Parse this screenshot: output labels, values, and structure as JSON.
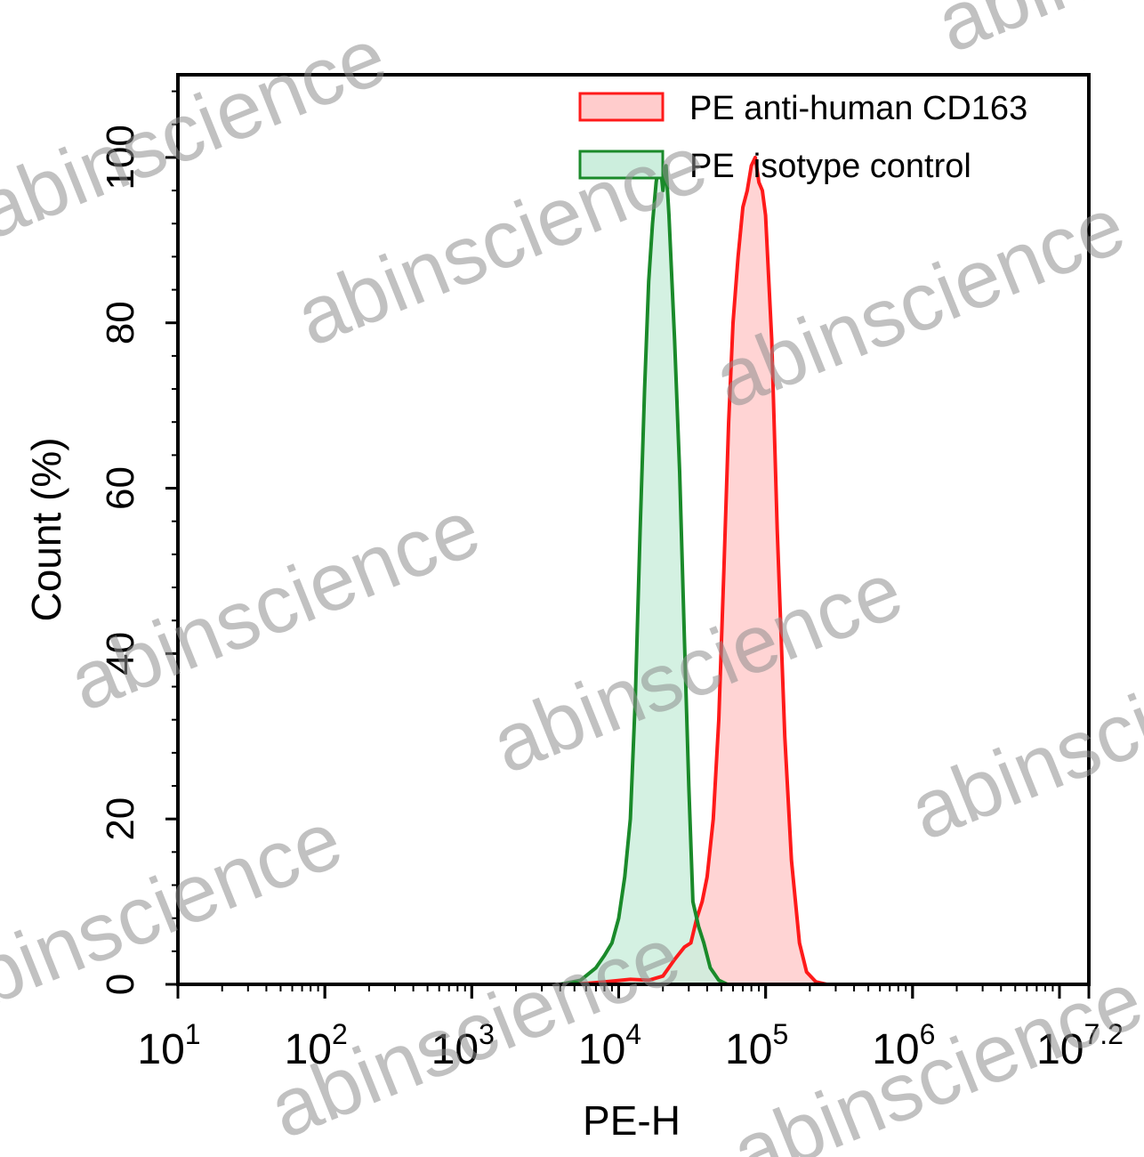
{
  "chart_data": {
    "type": "area",
    "xlabel": "PE-H",
    "ylabel": "Count (%)",
    "x_scale": "log10",
    "xlim": [
      10,
      15848932
    ],
    "ylim": [
      0,
      110
    ],
    "x_ticks": [
      {
        "value": 10,
        "base": "10",
        "exp": "1"
      },
      {
        "value": 100,
        "base": "10",
        "exp": "2"
      },
      {
        "value": 1000,
        "base": "10",
        "exp": "3"
      },
      {
        "value": 10000,
        "base": "10",
        "exp": "4"
      },
      {
        "value": 100000,
        "base": "10",
        "exp": "5"
      },
      {
        "value": 1000000,
        "base": "10",
        "exp": "6"
      },
      {
        "value": 15848932,
        "base": "10",
        "exp": "7.2"
      }
    ],
    "y_ticks": [
      {
        "value": 0,
        "label": "0"
      },
      {
        "value": 20,
        "label": "20"
      },
      {
        "value": 40,
        "label": "40"
      },
      {
        "value": 60,
        "label": "60"
      },
      {
        "value": 80,
        "label": "80"
      },
      {
        "value": 100,
        "label": "100"
      }
    ],
    "grid": false,
    "legend_position": "top-right",
    "series": [
      {
        "name": "PE anti-human CD163",
        "stroke": "#ff1a1a",
        "fill": "#ffcccc",
        "points": [
          [
            5000,
            0
          ],
          [
            8000,
            0.3
          ],
          [
            12000,
            0.6
          ],
          [
            16000,
            0.5
          ],
          [
            20000,
            1.0
          ],
          [
            24000,
            3.0
          ],
          [
            28000,
            4.5
          ],
          [
            31000,
            5.0
          ],
          [
            34000,
            8.0
          ],
          [
            37000,
            10.0
          ],
          [
            40000,
            13.0
          ],
          [
            44000,
            20.0
          ],
          [
            48000,
            32.0
          ],
          [
            52000,
            50.0
          ],
          [
            56000,
            68.0
          ],
          [
            60000,
            80.0
          ],
          [
            65000,
            88.0
          ],
          [
            70000,
            94.0
          ],
          [
            75000,
            96.0
          ],
          [
            80000,
            99.0
          ],
          [
            85000,
            100.0
          ],
          [
            90000,
            97.0
          ],
          [
            95000,
            96.0
          ],
          [
            100000,
            93.0
          ],
          [
            110000,
            78.0
          ],
          [
            120000,
            55.0
          ],
          [
            135000,
            30.0
          ],
          [
            150000,
            15.0
          ],
          [
            170000,
            5.0
          ],
          [
            190000,
            1.5
          ],
          [
            220000,
            0.3
          ],
          [
            260000,
            0
          ]
        ]
      },
      {
        "name": "PE  isotype control",
        "stroke": "#1a8a2a",
        "fill": "#cceedd",
        "points": [
          [
            4000,
            0
          ],
          [
            5500,
            0.5
          ],
          [
            7000,
            2.0
          ],
          [
            8000,
            3.5
          ],
          [
            9000,
            5.0
          ],
          [
            10000,
            8.0
          ],
          [
            11000,
            13.0
          ],
          [
            12000,
            20.0
          ],
          [
            13000,
            35.0
          ],
          [
            14000,
            55.0
          ],
          [
            15000,
            72.0
          ],
          [
            16000,
            85.0
          ],
          [
            17000,
            92.0
          ],
          [
            18000,
            97.0
          ],
          [
            19000,
            100.0
          ],
          [
            20000,
            96.0
          ],
          [
            21000,
            99.0
          ],
          [
            22000,
            93.0
          ],
          [
            24000,
            78.0
          ],
          [
            26000,
            62.0
          ],
          [
            28000,
            42.0
          ],
          [
            30000,
            24.0
          ],
          [
            32000,
            10.0
          ],
          [
            35000,
            7.0
          ],
          [
            38000,
            5.0
          ],
          [
            42000,
            2.0
          ],
          [
            48000,
            0.5
          ],
          [
            55000,
            0
          ]
        ]
      }
    ],
    "watermark_text": "abinscience"
  }
}
